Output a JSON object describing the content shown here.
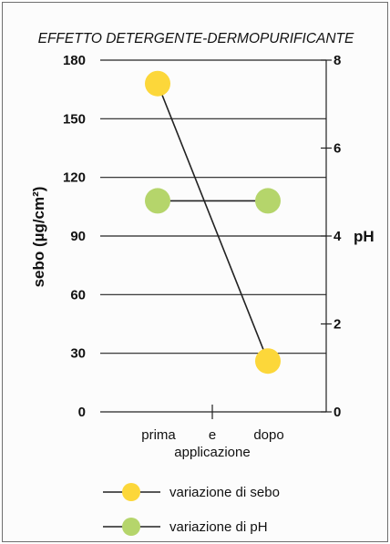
{
  "chart_data": {
    "type": "line",
    "title": "EFFETTO DETERGENTE-DERMOPURIFICANTE",
    "xlabel": "applicazione",
    "categories": [
      "prima",
      "dopo"
    ],
    "category_connector": "e",
    "ylabel": "sebo (µg/cm²)",
    "ylim": [
      0,
      180
    ],
    "yticks": [
      "0",
      "30",
      "60",
      "90",
      "120",
      "150",
      "180"
    ],
    "y2label": "pH",
    "y2lim": [
      0,
      8
    ],
    "y2ticks": [
      "0",
      "2",
      "4",
      "6",
      "8"
    ],
    "grid": true,
    "legend_position": "bottom",
    "series": [
      {
        "name": "variazione di sebo",
        "axis": "left",
        "values": [
          168,
          26
        ],
        "color": "#fcd73a"
      },
      {
        "name": "variazione di pH",
        "axis": "right",
        "values": [
          4.8,
          4.8
        ],
        "color": "#b5d56b"
      }
    ]
  }
}
